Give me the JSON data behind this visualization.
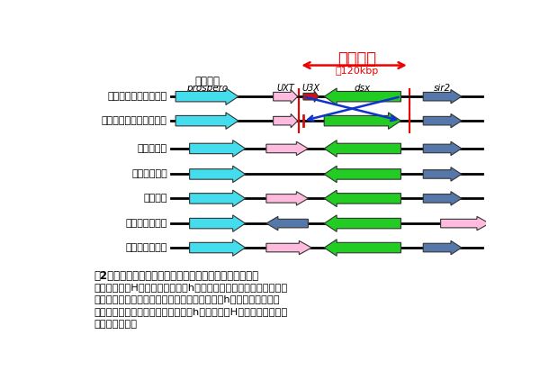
{
  "title": "逆位領域",
  "approx_label": "約120kbp",
  "gene_names_label": "遺伝子名",
  "species": [
    "シロオビアゲハ擬態型",
    "シロオビアゲハ非擬態型",
    "ナミアゲハ",
    "ヘリコニウス",
    "カイコガ",
    "オオカバマダラ",
    "タバコスズメガ"
  ],
  "bg_color": "#ffffff",
  "line_color": "#000000",
  "dashed_color": "#ee0000",
  "arrow_blue_color": "#1133cc",
  "inv_arrow_color": "#ee0000",
  "cyan": "#44ddee",
  "pink": "#ffbbdd",
  "red_gene": "#cc1111",
  "green": "#22cc22",
  "blue_gray": "#5577aa",
  "figure_caption_line1": "図2　擬態形質の原因となる領域（逆位領域）近傍の構造",
  "figure_caption_lines": [
    "図2　擬態形質の原因となる領域（逆位領域）近傍の構造",
    "擬態型染色体Hと非擬態型染色体hは原因となる領域で染色体の向き",
    "が逆になっている。他の鱗翅目昆虫も非擬態型hとほぼ同じ遺伝子",
    "構造をしていることから、非擬態型hから擬態型Hの染色体が生じた",
    "と推測される。"
  ]
}
